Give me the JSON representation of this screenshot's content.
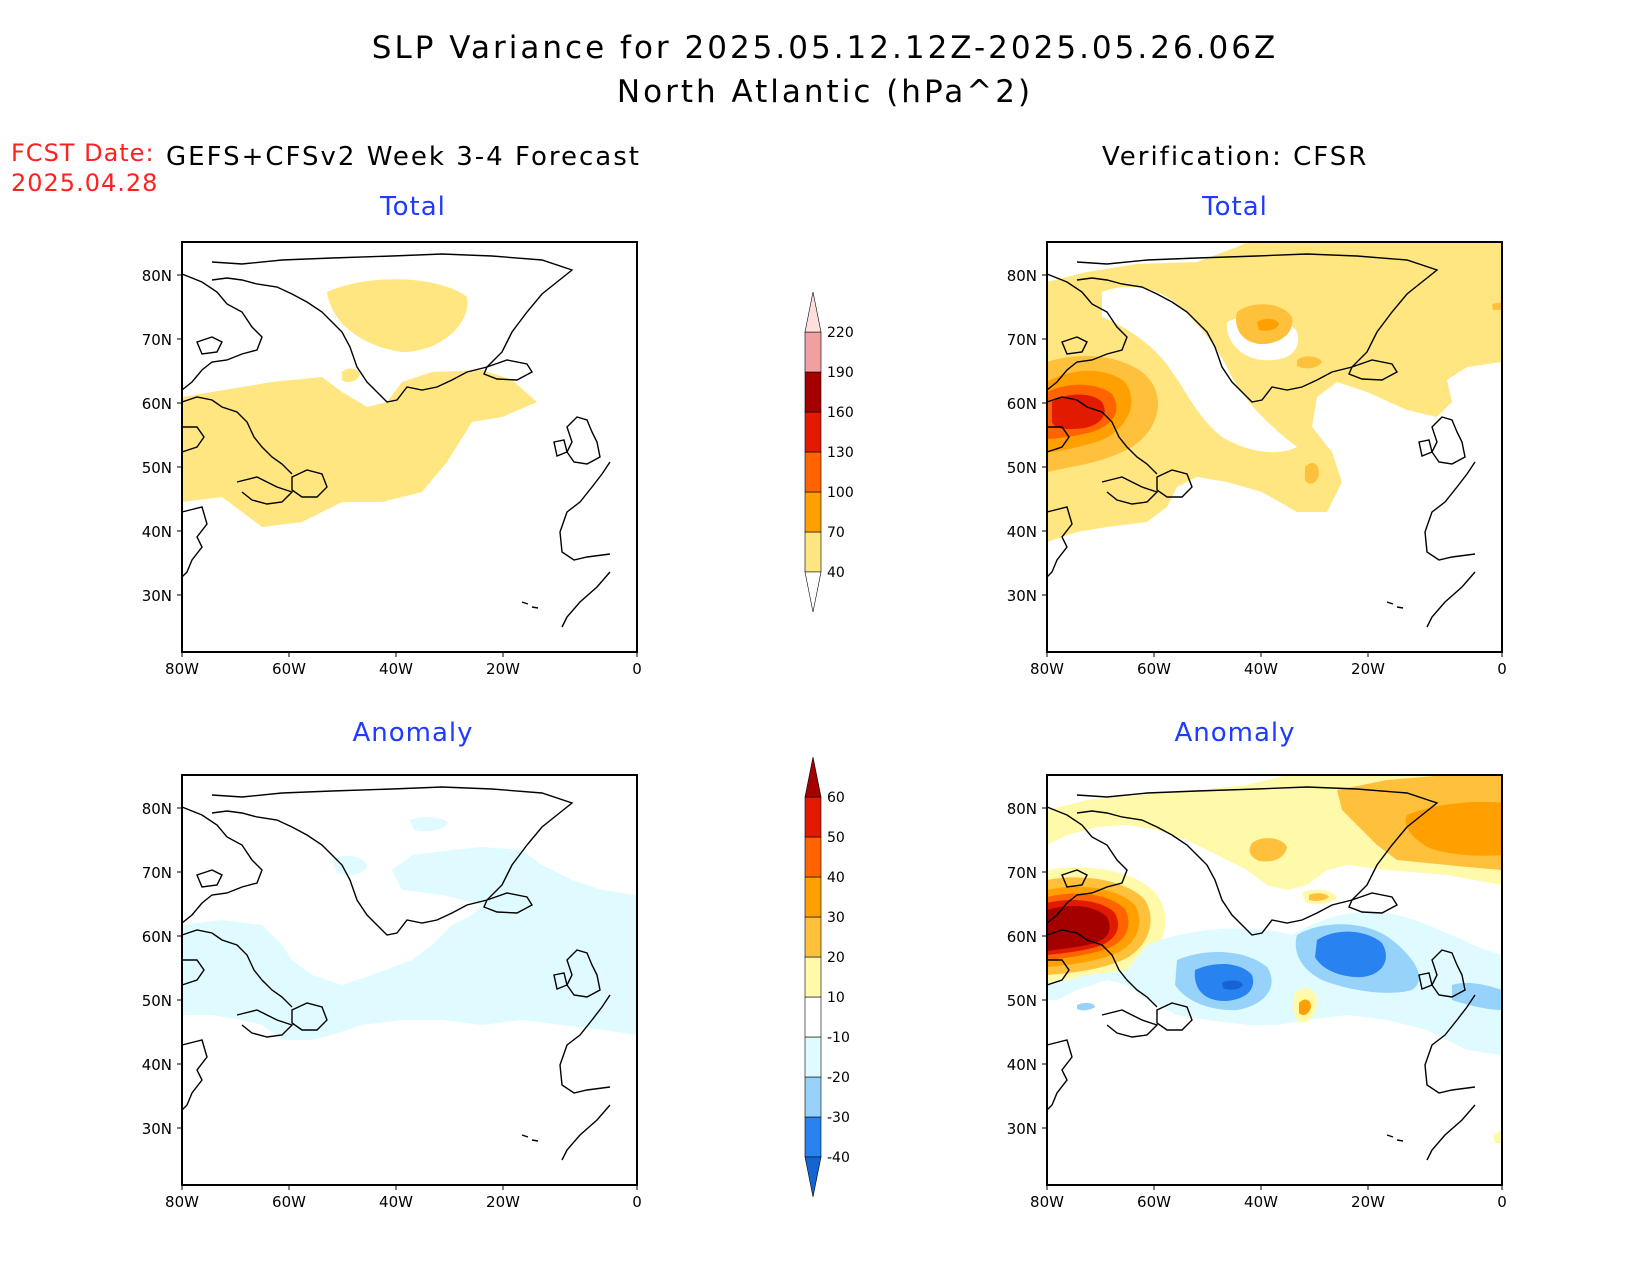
{
  "title_line1": "SLP Variance for 2025.05.12.12Z-2025.05.26.06Z",
  "title_line2": "North Atlantic (hPa^2)",
  "fcst_label": "FCST Date:",
  "fcst_date": "2025.04.28",
  "left_header": "GEFS+CFSv2 Week 3-4 Forecast",
  "right_header": "Verification: CFSR",
  "subtitles": {
    "total": "Total",
    "anomaly": "Anomaly"
  },
  "lat_labels": [
    "80N",
    "70N",
    "60N",
    "50N",
    "40N",
    "30N"
  ],
  "lon_labels": [
    "80W",
    "60W",
    "40W",
    "20W",
    "0"
  ],
  "total_colorbar": {
    "labels": [
      "40",
      "70",
      "100",
      "130",
      "160",
      "190",
      "220"
    ],
    "colors": [
      "#ffe680",
      "#ffa000",
      "#ff6400",
      "#e11a00",
      "#a50000",
      "#f0a0a0",
      "#fde0dc"
    ]
  },
  "anomaly_colorbar": {
    "labels": [
      "-40",
      "-30",
      "-20",
      "-10",
      "10",
      "20",
      "30",
      "40",
      "50",
      "60"
    ],
    "colors": [
      "#1464d2",
      "#2882f0",
      "#96d2fa",
      "#e0fbff",
      "#ffffff",
      "#fffaaa",
      "#ffc03c",
      "#ffa000",
      "#ff6400",
      "#e11a00",
      "#a50000"
    ]
  },
  "field_colors": {
    "c40": "#ffe680",
    "c70": "#ffc03c",
    "c100": "#ffa000",
    "c130": "#ff6400",
    "c160": "#e11a00",
    "c190": "#a50000",
    "a_neg10": "#e0fbff",
    "a_neg20": "#96d2fa",
    "a_neg30": "#2882f0",
    "a_neg40": "#1464d2",
    "a_pos10": "#fffaaa",
    "a_pos20": "#ffc03c",
    "a_pos30": "#ffa000",
    "a_pos40": "#ff6400",
    "a_pos50": "#e11a00",
    "a_pos60": "#a50000"
  }
}
